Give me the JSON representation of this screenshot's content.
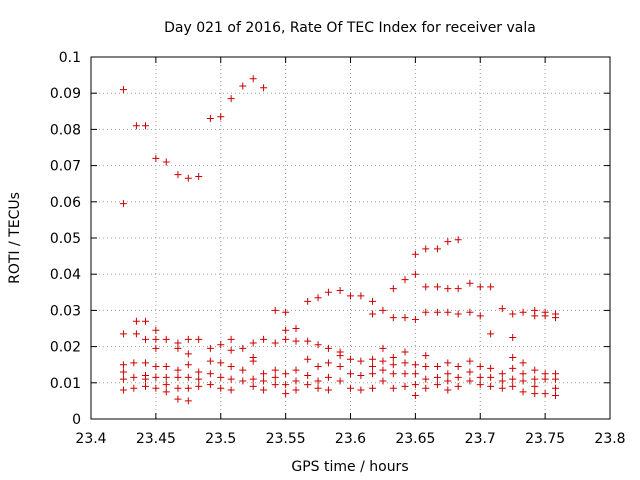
{
  "chart_data": {
    "type": "scatter",
    "title": "Day 021 of 2016, Rate Of TEC Index for receiver vala",
    "xlabel": "GPS time / hours",
    "ylabel": "ROTI / TECUs",
    "xlim": [
      23.4,
      23.8
    ],
    "ylim": [
      0,
      0.1
    ],
    "xticks": [
      "23.4",
      "23.45",
      "23.5",
      "23.55",
      "23.6",
      "23.65",
      "23.7",
      "23.75",
      "23.8"
    ],
    "yticks": [
      "0",
      "0.01",
      "0.02",
      "0.03",
      "0.04",
      "0.05",
      "0.06",
      "0.07",
      "0.08",
      "0.09",
      "0.1"
    ],
    "grid": true,
    "marker": "+",
    "color": "#cc0000",
    "series": [
      {
        "points": [
          [
            23.425,
            0.091
          ],
          [
            23.425,
            0.0595
          ],
          [
            23.435,
            0.081
          ],
          [
            23.442,
            0.081
          ],
          [
            23.45,
            0.072
          ],
          [
            23.458,
            0.071
          ],
          [
            23.467,
            0.0675
          ],
          [
            23.475,
            0.0665
          ],
          [
            23.483,
            0.067
          ],
          [
            23.492,
            0.083
          ],
          [
            23.5,
            0.0835
          ],
          [
            23.508,
            0.0885
          ],
          [
            23.517,
            0.092
          ],
          [
            23.525,
            0.094
          ],
          [
            23.533,
            0.0915
          ],
          [
            23.425,
            0.0235
          ],
          [
            23.435,
            0.0235
          ],
          [
            23.435,
            0.027
          ],
          [
            23.442,
            0.027
          ],
          [
            23.442,
            0.022
          ],
          [
            23.45,
            0.0245
          ],
          [
            23.45,
            0.022
          ],
          [
            23.458,
            0.022
          ],
          [
            23.467,
            0.021
          ],
          [
            23.467,
            0.0195
          ],
          [
            23.475,
            0.022
          ],
          [
            23.475,
            0.018
          ],
          [
            23.483,
            0.022
          ],
          [
            23.492,
            0.0195
          ],
          [
            23.5,
            0.0205
          ],
          [
            23.508,
            0.022
          ],
          [
            23.508,
            0.019
          ],
          [
            23.517,
            0.0195
          ],
          [
            23.525,
            0.021
          ],
          [
            23.525,
            0.017
          ],
          [
            23.533,
            0.022
          ],
          [
            23.542,
            0.03
          ],
          [
            23.542,
            0.021
          ],
          [
            23.55,
            0.0295
          ],
          [
            23.55,
            0.0245
          ],
          [
            23.55,
            0.022
          ],
          [
            23.558,
            0.025
          ],
          [
            23.558,
            0.0215
          ],
          [
            23.567,
            0.0325
          ],
          [
            23.567,
            0.0215
          ],
          [
            23.575,
            0.0335
          ],
          [
            23.575,
            0.0205
          ],
          [
            23.583,
            0.035
          ],
          [
            23.583,
            0.0195
          ],
          [
            23.592,
            0.0355
          ],
          [
            23.592,
            0.0185
          ],
          [
            23.6,
            0.034
          ],
          [
            23.608,
            0.034
          ],
          [
            23.617,
            0.0325
          ],
          [
            23.617,
            0.029
          ],
          [
            23.625,
            0.03
          ],
          [
            23.625,
            0.0195
          ],
          [
            23.633,
            0.036
          ],
          [
            23.633,
            0.028
          ],
          [
            23.642,
            0.0385
          ],
          [
            23.642,
            0.028
          ],
          [
            23.642,
            0.0185
          ],
          [
            23.65,
            0.0455
          ],
          [
            23.65,
            0.04
          ],
          [
            23.65,
            0.0275
          ],
          [
            23.658,
            0.047
          ],
          [
            23.658,
            0.0365
          ],
          [
            23.658,
            0.0295
          ],
          [
            23.667,
            0.047
          ],
          [
            23.667,
            0.0365
          ],
          [
            23.667,
            0.0295
          ],
          [
            23.675,
            0.049
          ],
          [
            23.675,
            0.036
          ],
          [
            23.675,
            0.0295
          ],
          [
            23.683,
            0.0495
          ],
          [
            23.683,
            0.036
          ],
          [
            23.683,
            0.029
          ],
          [
            23.692,
            0.0375
          ],
          [
            23.692,
            0.0295
          ],
          [
            23.7,
            0.0365
          ],
          [
            23.7,
            0.0285
          ],
          [
            23.708,
            0.0365
          ],
          [
            23.708,
            0.0235
          ],
          [
            23.717,
            0.0305
          ],
          [
            23.725,
            0.029
          ],
          [
            23.725,
            0.0225
          ],
          [
            23.733,
            0.0295
          ],
          [
            23.742,
            0.03
          ],
          [
            23.742,
            0.0285
          ],
          [
            23.75,
            0.0295
          ],
          [
            23.75,
            0.0285
          ],
          [
            23.758,
            0.029
          ],
          [
            23.758,
            0.028
          ],
          [
            23.425,
            0.015
          ],
          [
            23.425,
            0.013
          ],
          [
            23.425,
            0.011
          ],
          [
            23.425,
            0.008
          ],
          [
            23.433,
            0.0155
          ],
          [
            23.433,
            0.0115
          ],
          [
            23.433,
            0.0085
          ],
          [
            23.442,
            0.0155
          ],
          [
            23.442,
            0.012
          ],
          [
            23.442,
            0.011
          ],
          [
            23.442,
            0.009
          ],
          [
            23.45,
            0.0195
          ],
          [
            23.45,
            0.0145
          ],
          [
            23.45,
            0.0115
          ],
          [
            23.45,
            0.0085
          ],
          [
            23.458,
            0.0145
          ],
          [
            23.458,
            0.0115
          ],
          [
            23.458,
            0.0095
          ],
          [
            23.458,
            0.0075
          ],
          [
            23.467,
            0.0135
          ],
          [
            23.467,
            0.0115
          ],
          [
            23.467,
            0.0085
          ],
          [
            23.467,
            0.0055
          ],
          [
            23.475,
            0.015
          ],
          [
            23.475,
            0.0115
          ],
          [
            23.475,
            0.0085
          ],
          [
            23.475,
            0.005
          ],
          [
            23.483,
            0.013
          ],
          [
            23.483,
            0.011
          ],
          [
            23.483,
            0.009
          ],
          [
            23.492,
            0.016
          ],
          [
            23.492,
            0.0125
          ],
          [
            23.492,
            0.0095
          ],
          [
            23.5,
            0.0155
          ],
          [
            23.5,
            0.0115
          ],
          [
            23.5,
            0.0085
          ],
          [
            23.508,
            0.0145
          ],
          [
            23.508,
            0.011
          ],
          [
            23.508,
            0.008
          ],
          [
            23.517,
            0.0135
          ],
          [
            23.517,
            0.0105
          ],
          [
            23.525,
            0.016
          ],
          [
            23.525,
            0.011
          ],
          [
            23.525,
            0.009
          ],
          [
            23.533,
            0.0125
          ],
          [
            23.533,
            0.0105
          ],
          [
            23.533,
            0.008
          ],
          [
            23.542,
            0.0135
          ],
          [
            23.542,
            0.0115
          ],
          [
            23.542,
            0.0095
          ],
          [
            23.55,
            0.0125
          ],
          [
            23.55,
            0.0095
          ],
          [
            23.55,
            0.007
          ],
          [
            23.558,
            0.0135
          ],
          [
            23.558,
            0.0105
          ],
          [
            23.558,
            0.008
          ],
          [
            23.567,
            0.0165
          ],
          [
            23.567,
            0.012
          ],
          [
            23.567,
            0.0095
          ],
          [
            23.575,
            0.0145
          ],
          [
            23.575,
            0.0105
          ],
          [
            23.575,
            0.0085
          ],
          [
            23.583,
            0.0155
          ],
          [
            23.583,
            0.0115
          ],
          [
            23.583,
            0.008
          ],
          [
            23.592,
            0.0175
          ],
          [
            23.592,
            0.0145
          ],
          [
            23.592,
            0.0105
          ],
          [
            23.6,
            0.0165
          ],
          [
            23.6,
            0.0125
          ],
          [
            23.6,
            0.0085
          ],
          [
            23.608,
            0.016
          ],
          [
            23.608,
            0.012
          ],
          [
            23.608,
            0.008
          ],
          [
            23.617,
            0.0165
          ],
          [
            23.617,
            0.0145
          ],
          [
            23.617,
            0.0125
          ],
          [
            23.617,
            0.0085
          ],
          [
            23.625,
            0.016
          ],
          [
            23.625,
            0.0135
          ],
          [
            23.625,
            0.0105
          ],
          [
            23.633,
            0.017
          ],
          [
            23.633,
            0.015
          ],
          [
            23.633,
            0.0125
          ],
          [
            23.633,
            0.0085
          ],
          [
            23.642,
            0.0155
          ],
          [
            23.642,
            0.0125
          ],
          [
            23.642,
            0.009
          ],
          [
            23.65,
            0.015
          ],
          [
            23.65,
            0.0125
          ],
          [
            23.65,
            0.0095
          ],
          [
            23.65,
            0.0065
          ],
          [
            23.658,
            0.0175
          ],
          [
            23.658,
            0.0145
          ],
          [
            23.658,
            0.011
          ],
          [
            23.658,
            0.0085
          ],
          [
            23.667,
            0.0145
          ],
          [
            23.667,
            0.0115
          ],
          [
            23.667,
            0.0095
          ],
          [
            23.675,
            0.0155
          ],
          [
            23.675,
            0.0125
          ],
          [
            23.675,
            0.0105
          ],
          [
            23.675,
            0.008
          ],
          [
            23.683,
            0.0145
          ],
          [
            23.683,
            0.0115
          ],
          [
            23.683,
            0.009
          ],
          [
            23.692,
            0.016
          ],
          [
            23.692,
            0.013
          ],
          [
            23.692,
            0.0105
          ],
          [
            23.7,
            0.0145
          ],
          [
            23.7,
            0.0115
          ],
          [
            23.7,
            0.0095
          ],
          [
            23.708,
            0.014
          ],
          [
            23.708,
            0.0115
          ],
          [
            23.708,
            0.009
          ],
          [
            23.717,
            0.0125
          ],
          [
            23.717,
            0.0105
          ],
          [
            23.717,
            0.0085
          ],
          [
            23.725,
            0.017
          ],
          [
            23.725,
            0.014
          ],
          [
            23.725,
            0.011
          ],
          [
            23.725,
            0.009
          ],
          [
            23.733,
            0.0155
          ],
          [
            23.733,
            0.0125
          ],
          [
            23.733,
            0.0105
          ],
          [
            23.733,
            0.0075
          ],
          [
            23.742,
            0.0135
          ],
          [
            23.742,
            0.011
          ],
          [
            23.742,
            0.009
          ],
          [
            23.742,
            0.007
          ],
          [
            23.75,
            0.0125
          ],
          [
            23.75,
            0.011
          ],
          [
            23.75,
            0.007
          ],
          [
            23.758,
            0.0125
          ],
          [
            23.758,
            0.011
          ],
          [
            23.758,
            0.0085
          ],
          [
            23.758,
            0.0065
          ]
        ]
      }
    ]
  }
}
